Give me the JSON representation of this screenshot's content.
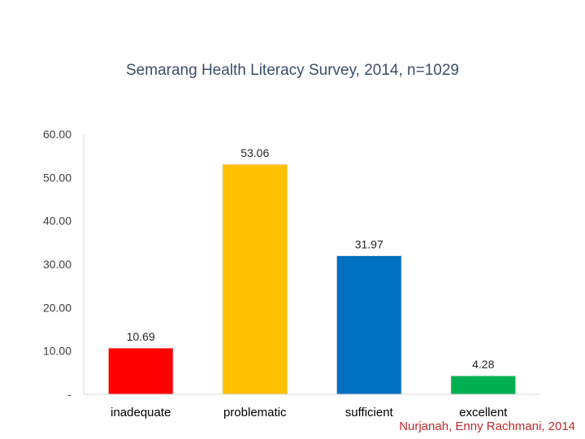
{
  "chart_data": {
    "type": "bar",
    "title": "Semarang Health Literacy Survey, 2014, n=1029",
    "categories": [
      "inadequate",
      "problematic",
      "sufficient",
      "excellent"
    ],
    "values": [
      10.69,
      53.06,
      31.97,
      4.28
    ],
    "value_labels": [
      "10.69",
      "53.06",
      "31.97",
      "4.28"
    ],
    "colors": [
      "#ff0000",
      "#ffc000",
      "#0070c0",
      "#00b050"
    ],
    "y_ticks": [
      0,
      10,
      20,
      30,
      40,
      50,
      60
    ],
    "y_tick_labels": [
      "-",
      "10.00",
      "20.00",
      "30.00",
      "40.00",
      "50.00",
      "60.00"
    ],
    "ylim": [
      0,
      60
    ],
    "xlabel": "",
    "ylabel": "",
    "grid": false,
    "legend": "none"
  },
  "source": "Nurjanah, Enny Rachmani, 2014"
}
